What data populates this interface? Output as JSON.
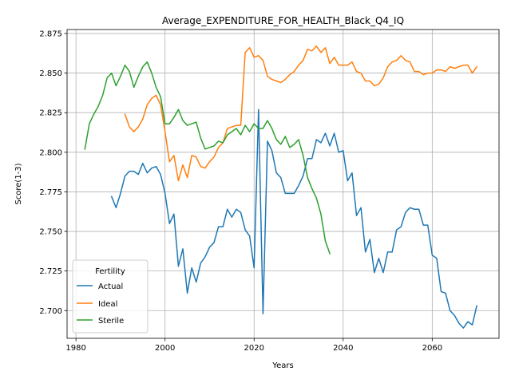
{
  "chart_data": {
    "type": "line",
    "title": "Average_EXPENDITURE_FOR_HEALTH_Black_Q4_IQ",
    "xlabel": "Years",
    "ylabel": "Score(1-3)",
    "xlim": [
      1978,
      2075
    ],
    "ylim": [
      2.6825,
      2.8775
    ],
    "x_ticks": [
      1980,
      2000,
      2020,
      2040,
      2060
    ],
    "y_ticks": [
      2.7,
      2.725,
      2.75,
      2.775,
      2.8,
      2.825,
      2.85,
      2.875
    ],
    "x_tick_labels": [
      "1980",
      "2000",
      "2020",
      "2040",
      "2060"
    ],
    "y_tick_labels": [
      "2.700",
      "2.725",
      "2.750",
      "2.775",
      "2.800",
      "2.825",
      "2.850",
      "2.875"
    ],
    "grid": true,
    "legend": {
      "title": "Fertility",
      "position": "lower-left"
    },
    "series": [
      {
        "name": "Actual",
        "color": "#1f77b4",
        "points": [
          [
            1988,
            2.772
          ],
          [
            1989,
            2.765
          ],
          [
            1990,
            2.774
          ],
          [
            1991,
            2.785
          ],
          [
            1992,
            2.788
          ],
          [
            1993,
            2.788
          ],
          [
            1994,
            2.786
          ],
          [
            1995,
            2.793
          ],
          [
            1996,
            2.787
          ],
          [
            1997,
            2.79
          ],
          [
            1998,
            2.791
          ],
          [
            1999,
            2.786
          ],
          [
            2000,
            2.774
          ],
          [
            2001,
            2.755
          ],
          [
            2002,
            2.761
          ],
          [
            2003,
            2.728
          ],
          [
            2004,
            2.739
          ],
          [
            2005,
            2.711
          ],
          [
            2006,
            2.727
          ],
          [
            2007,
            2.718
          ],
          [
            2008,
            2.73
          ],
          [
            2009,
            2.734
          ],
          [
            2010,
            2.74
          ],
          [
            2011,
            2.743
          ],
          [
            2012,
            2.753
          ],
          [
            2013,
            2.753
          ],
          [
            2014,
            2.764
          ],
          [
            2015,
            2.759
          ],
          [
            2016,
            2.764
          ],
          [
            2017,
            2.762
          ],
          [
            2018,
            2.751
          ],
          [
            2019,
            2.747
          ],
          [
            2020,
            2.727
          ],
          [
            2021,
            2.827
          ],
          [
            2022,
            2.698
          ],
          [
            2023,
            2.807
          ],
          [
            2024,
            2.801
          ],
          [
            2025,
            2.787
          ],
          [
            2026,
            2.784
          ],
          [
            2027,
            2.774
          ],
          [
            2028,
            2.774
          ],
          [
            2029,
            2.774
          ],
          [
            2030,
            2.779
          ],
          [
            2031,
            2.785
          ],
          [
            2032,
            2.796
          ],
          [
            2033,
            2.796
          ],
          [
            2034,
            2.808
          ],
          [
            2035,
            2.806
          ],
          [
            2036,
            2.812
          ],
          [
            2037,
            2.804
          ],
          [
            2038,
            2.812
          ],
          [
            2039,
            2.8
          ],
          [
            2040,
            2.801
          ],
          [
            2041,
            2.782
          ],
          [
            2042,
            2.787
          ],
          [
            2043,
            2.76
          ],
          [
            2044,
            2.765
          ],
          [
            2045,
            2.737
          ],
          [
            2046,
            2.745
          ],
          [
            2047,
            2.724
          ],
          [
            2048,
            2.733
          ],
          [
            2049,
            2.724
          ],
          [
            2050,
            2.737
          ],
          [
            2051,
            2.737
          ],
          [
            2052,
            2.751
          ],
          [
            2053,
            2.753
          ],
          [
            2054,
            2.762
          ],
          [
            2055,
            2.765
          ],
          [
            2056,
            2.764
          ],
          [
            2057,
            2.764
          ],
          [
            2058,
            2.754
          ],
          [
            2059,
            2.754
          ],
          [
            2060,
            2.735
          ],
          [
            2061,
            2.733
          ],
          [
            2062,
            2.712
          ],
          [
            2063,
            2.711
          ],
          [
            2064,
            2.7
          ],
          [
            2065,
            2.697
          ],
          [
            2066,
            2.692
          ],
          [
            2067,
            2.689
          ],
          [
            2068,
            2.693
          ],
          [
            2069,
            2.691
          ],
          [
            2070,
            2.703
          ]
        ]
      },
      {
        "name": "Ideal",
        "color": "#ff7f0e",
        "points": [
          [
            1991,
            2.824
          ],
          [
            1992,
            2.816
          ],
          [
            1993,
            2.813
          ],
          [
            1994,
            2.816
          ],
          [
            1995,
            2.821
          ],
          [
            1996,
            2.83
          ],
          [
            1997,
            2.834
          ],
          [
            1998,
            2.836
          ],
          [
            1999,
            2.83
          ],
          [
            2000,
            2.813
          ],
          [
            2001,
            2.794
          ],
          [
            2002,
            2.798
          ],
          [
            2003,
            2.782
          ],
          [
            2004,
            2.792
          ],
          [
            2005,
            2.784
          ],
          [
            2006,
            2.798
          ],
          [
            2007,
            2.797
          ],
          [
            2008,
            2.791
          ],
          [
            2009,
            2.79
          ],
          [
            2010,
            2.794
          ],
          [
            2011,
            2.797
          ],
          [
            2012,
            2.803
          ],
          [
            2013,
            2.806
          ],
          [
            2014,
            2.815
          ],
          [
            2015,
            2.816
          ],
          [
            2016,
            2.817
          ],
          [
            2017,
            2.817
          ],
          [
            2018,
            2.863
          ],
          [
            2019,
            2.866
          ],
          [
            2020,
            2.86
          ],
          [
            2021,
            2.861
          ],
          [
            2022,
            2.858
          ],
          [
            2023,
            2.848
          ],
          [
            2024,
            2.846
          ],
          [
            2025,
            2.845
          ],
          [
            2026,
            2.844
          ],
          [
            2027,
            2.846
          ],
          [
            2028,
            2.849
          ],
          [
            2029,
            2.851
          ],
          [
            2030,
            2.855
          ],
          [
            2031,
            2.858
          ],
          [
            2032,
            2.865
          ],
          [
            2033,
            2.864
          ],
          [
            2034,
            2.867
          ],
          [
            2035,
            2.863
          ],
          [
            2036,
            2.866
          ],
          [
            2037,
            2.856
          ],
          [
            2038,
            2.86
          ],
          [
            2039,
            2.855
          ],
          [
            2040,
            2.855
          ],
          [
            2041,
            2.855
          ],
          [
            2042,
            2.857
          ],
          [
            2043,
            2.851
          ],
          [
            2044,
            2.85
          ],
          [
            2045,
            2.845
          ],
          [
            2046,
            2.845
          ],
          [
            2047,
            2.842
          ],
          [
            2048,
            2.843
          ],
          [
            2049,
            2.847
          ],
          [
            2050,
            2.854
          ],
          [
            2051,
            2.857
          ],
          [
            2052,
            2.858
          ],
          [
            2053,
            2.861
          ],
          [
            2054,
            2.858
          ],
          [
            2055,
            2.857
          ],
          [
            2056,
            2.851
          ],
          [
            2057,
            2.851
          ],
          [
            2058,
            2.849
          ],
          [
            2059,
            2.85
          ],
          [
            2060,
            2.85
          ],
          [
            2061,
            2.852
          ],
          [
            2062,
            2.852
          ],
          [
            2063,
            2.851
          ],
          [
            2064,
            2.854
          ],
          [
            2065,
            2.853
          ],
          [
            2066,
            2.854
          ],
          [
            2067,
            2.855
          ],
          [
            2068,
            2.855
          ],
          [
            2069,
            2.85
          ],
          [
            2070,
            2.854
          ]
        ]
      },
      {
        "name": "Sterile",
        "color": "#2ca02c",
        "points": [
          [
            1982,
            2.802
          ],
          [
            1983,
            2.818
          ],
          [
            1984,
            2.824
          ],
          [
            1985,
            2.829
          ],
          [
            1986,
            2.836
          ],
          [
            1987,
            2.847
          ],
          [
            1988,
            2.85
          ],
          [
            1989,
            2.842
          ],
          [
            1990,
            2.848
          ],
          [
            1991,
            2.855
          ],
          [
            1992,
            2.851
          ],
          [
            1993,
            2.841
          ],
          [
            1994,
            2.848
          ],
          [
            1995,
            2.854
          ],
          [
            1996,
            2.857
          ],
          [
            1997,
            2.85
          ],
          [
            1998,
            2.841
          ],
          [
            1999,
            2.835
          ],
          [
            2000,
            2.818
          ],
          [
            2001,
            2.818
          ],
          [
            2002,
            2.822
          ],
          [
            2003,
            2.827
          ],
          [
            2004,
            2.82
          ],
          [
            2005,
            2.817
          ],
          [
            2006,
            2.818
          ],
          [
            2007,
            2.819
          ],
          [
            2008,
            2.809
          ],
          [
            2009,
            2.802
          ],
          [
            2010,
            2.803
          ],
          [
            2011,
            2.804
          ],
          [
            2012,
            2.807
          ],
          [
            2013,
            2.806
          ],
          [
            2014,
            2.811
          ],
          [
            2015,
            2.813
          ],
          [
            2016,
            2.815
          ],
          [
            2017,
            2.811
          ],
          [
            2018,
            2.817
          ],
          [
            2019,
            2.813
          ],
          [
            2020,
            2.818
          ],
          [
            2021,
            2.815
          ],
          [
            2022,
            2.815
          ],
          [
            2023,
            2.82
          ],
          [
            2024,
            2.815
          ],
          [
            2025,
            2.808
          ],
          [
            2026,
            2.805
          ],
          [
            2027,
            2.81
          ],
          [
            2028,
            2.803
          ],
          [
            2029,
            2.805
          ],
          [
            2030,
            2.808
          ],
          [
            2031,
            2.798
          ],
          [
            2032,
            2.784
          ],
          [
            2033,
            2.777
          ],
          [
            2034,
            2.771
          ],
          [
            2035,
            2.761
          ],
          [
            2036,
            2.744
          ],
          [
            2037,
            2.736
          ]
        ]
      }
    ]
  }
}
